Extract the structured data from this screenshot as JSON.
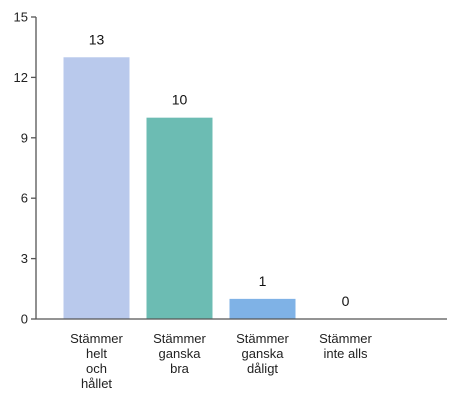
{
  "chart_data": {
    "type": "bar",
    "title": "",
    "xlabel": "",
    "ylabel": "",
    "ylim": [
      0,
      15
    ],
    "yticks": [
      0,
      3,
      6,
      9,
      12,
      15
    ],
    "grid": false,
    "categories": [
      [
        "Stämmer",
        "helt",
        "och",
        "hållet"
      ],
      [
        "Stämmer",
        "ganska",
        "bra"
      ],
      [
        "Stämmer",
        "ganska",
        "dåligt"
      ],
      [
        "Stämmer",
        "inte alls"
      ]
    ],
    "values": [
      13,
      10,
      1,
      0
    ],
    "colors": [
      "#b9c9ec",
      "#6cbcb3",
      "#7fb2e6",
      "#b9c9ec"
    ]
  }
}
